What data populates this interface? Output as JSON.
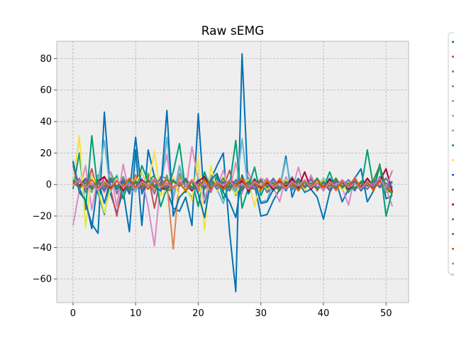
{
  "chart_data": {
    "type": "line",
    "title": "Raw sEMG",
    "xlabel": "",
    "ylabel": "",
    "xlim": [
      -2.6,
      53.6
    ],
    "ylim": [
      -75,
      91
    ],
    "xticks": [
      0,
      10,
      20,
      30,
      40,
      50
    ],
    "yticks": [
      -60,
      -40,
      -20,
      0,
      20,
      40,
      60,
      80
    ],
    "grid": true,
    "legend_position": "right-outside",
    "x": [
      0,
      1,
      2,
      3,
      4,
      5,
      6,
      7,
      8,
      9,
      10,
      11,
      12,
      13,
      14,
      15,
      16,
      17,
      18,
      19,
      20,
      21,
      22,
      23,
      24,
      25,
      26,
      27,
      28,
      29,
      30,
      31,
      32,
      33,
      34,
      35,
      36,
      37,
      38,
      39,
      40,
      41,
      42,
      43,
      44,
      45,
      46,
      47,
      48,
      49,
      50,
      51
    ],
    "series": [
      {
        "color": "#0072B2",
        "values": [
          14,
          -2,
          -12,
          -25,
          -31,
          46,
          -6,
          -18,
          -4,
          -30,
          22,
          -26,
          22,
          5,
          -2,
          -4,
          -15,
          -17,
          -8,
          -26,
          45,
          -12,
          3,
          12,
          20,
          -30,
          -68,
          83,
          -6,
          0,
          -20,
          -19,
          -10,
          -3,
          18,
          -8,
          2,
          -5,
          -3,
          -8,
          -22,
          -5,
          2,
          -11,
          -3,
          4,
          10,
          -11,
          -4,
          12,
          -9,
          -7
        ]
      },
      {
        "color": "#C44E52",
        "values": [
          3,
          0,
          -3,
          10,
          -6,
          5,
          -3,
          -20,
          3,
          -4,
          6,
          -2,
          6,
          -15,
          5,
          -4,
          -3,
          2,
          -1,
          3,
          -3,
          2,
          -5,
          4,
          -2,
          9,
          -6,
          3,
          -4,
          -2,
          4,
          -5,
          -2,
          -3,
          4,
          -1,
          3,
          -2,
          5,
          -4,
          2,
          -3,
          4,
          -2,
          -1,
          3,
          -3,
          2,
          -4,
          5,
          -3,
          -1
        ]
      },
      {
        "color": "#8172B2",
        "values": [
          -1,
          4,
          -5,
          6,
          -2,
          -3,
          8,
          -6,
          5,
          -3,
          2,
          -4,
          3,
          -6,
          5,
          4,
          -3,
          6,
          -1,
          -4,
          3,
          -2,
          5,
          -3,
          2,
          -4,
          3,
          -1,
          4,
          -3,
          2,
          -5,
          3,
          -2,
          4,
          -1,
          -3,
          2,
          -1,
          3,
          -2,
          4,
          -3,
          1,
          -2,
          3,
          -4,
          2,
          -1,
          3,
          -2,
          1
        ]
      },
      {
        "color": "#55A868",
        "values": [
          4,
          -3,
          2,
          -5,
          6,
          -4,
          8,
          -2,
          5,
          -6,
          3,
          -4,
          7,
          -1,
          -5,
          6,
          -9,
          7,
          -3,
          2,
          -5,
          4,
          -1,
          6,
          -4,
          3,
          -7,
          5,
          -2,
          4,
          -3,
          1,
          -4,
          3,
          -2,
          5,
          -3,
          2,
          -1,
          4,
          -2,
          3,
          -1,
          2,
          -4,
          3,
          -2,
          1,
          -3,
          2,
          -5,
          -4
        ]
      },
      {
        "color": "#DD8452",
        "values": [
          2,
          -2,
          3,
          -4,
          2,
          -5,
          4,
          -3,
          1,
          -2,
          5,
          -3,
          2,
          -4,
          3,
          1,
          -41,
          5,
          -2,
          3,
          -4,
          2,
          -3,
          4,
          -1,
          2,
          -3,
          5,
          -2,
          1,
          -4,
          3,
          -2,
          4,
          -1,
          2,
          -3,
          1,
          -2,
          3,
          -1,
          2,
          -4,
          1,
          -2,
          3,
          -1,
          2,
          -3,
          4,
          -2,
          -6
        ]
      },
      {
        "color": "#DA8BC3",
        "values": [
          -26,
          -4,
          12,
          -16,
          5,
          -3,
          8,
          -14,
          13,
          -6,
          -3,
          4,
          -14,
          -39,
          2,
          19,
          -10,
          11,
          -4,
          24,
          3,
          -10,
          6,
          -2,
          9,
          -4,
          14,
          -6,
          8,
          -3,
          4,
          2,
          -2,
          -11,
          5,
          -3,
          11,
          -4,
          6,
          -2,
          3,
          -1,
          4,
          -2,
          -13,
          5,
          -3,
          2,
          -1,
          4,
          -2,
          -14
        ]
      },
      {
        "color": "#64B5CD",
        "values": [
          5,
          -2,
          3,
          -4,
          1,
          28,
          -5,
          6,
          -7,
          3,
          -5,
          8,
          -3,
          4,
          -6,
          30,
          -8,
          12,
          -3,
          -8,
          4,
          -2,
          6,
          -3,
          -12,
          2,
          -5,
          29,
          -4,
          3,
          -11,
          -10,
          2,
          -3,
          16,
          -4,
          2,
          -1,
          3,
          -2,
          4,
          -1,
          -3,
          2,
          -1,
          4,
          -2,
          3,
          -1,
          2,
          -3,
          1
        ]
      },
      {
        "color": "#009E73",
        "values": [
          -3,
          20,
          -16,
          31,
          -5,
          -19,
          2,
          5,
          -9,
          3,
          -3,
          12,
          2,
          6,
          -14,
          -2,
          8,
          26,
          -5,
          3,
          -14,
          8,
          -3,
          5,
          -9,
          -1,
          28,
          -15,
          -2,
          11,
          -7,
          2,
          -4,
          3,
          -2,
          1,
          -3,
          2,
          -1,
          4,
          -2,
          8,
          -3,
          2,
          -5,
          1,
          -3,
          22,
          -2,
          13,
          -20,
          -4
        ]
      },
      {
        "color": "#F0E442",
        "values": [
          0,
          31,
          -27,
          6,
          -3,
          -18,
          -2,
          4,
          -3,
          -2,
          1,
          8,
          -1,
          21,
          -7,
          -3,
          5,
          -9,
          -2,
          -10,
          17,
          -29,
          12,
          -4,
          5,
          -2,
          -6,
          1,
          3,
          -14,
          2,
          -3,
          1,
          -2,
          3,
          -1,
          2,
          -3,
          1,
          -2,
          3,
          -1,
          2,
          -4,
          1,
          -2,
          2,
          -1,
          3,
          -2,
          1,
          -3
        ]
      },
      {
        "color": "#0072B2",
        "values": [
          15,
          -5,
          -10,
          -28,
          3,
          -12,
          4,
          -3,
          2,
          -6,
          30,
          -6,
          3,
          -1,
          -4,
          47,
          -20,
          -8,
          -4,
          3,
          -6,
          -21,
          3,
          7,
          -5,
          -11,
          -21,
          6,
          -5,
          3,
          -12,
          -11,
          -3,
          2,
          -4,
          3,
          -1,
          2,
          -3,
          1,
          -2,
          4,
          -2,
          3,
          -1,
          2,
          -4,
          1,
          -2,
          3,
          -1,
          2
        ]
      },
      {
        "color": "#4C72B0",
        "values": [
          1,
          -2,
          3,
          -1,
          2,
          -3,
          4,
          -2,
          1,
          -4,
          2,
          -1,
          3,
          -2,
          1,
          -3,
          2,
          -1,
          4,
          -2,
          3,
          -1,
          2,
          -3,
          1,
          -2,
          3,
          -4,
          2,
          -1,
          3,
          -2,
          1,
          -3,
          2,
          -1,
          4,
          -2,
          1,
          -3,
          2,
          -1,
          3,
          -2,
          1,
          -4,
          2,
          -1,
          3,
          -2,
          1,
          -3
        ]
      },
      {
        "color": "#A50026",
        "values": [
          2,
          -1,
          4,
          -3,
          2,
          5,
          -2,
          3,
          -4,
          1,
          -2,
          3,
          -1,
          4,
          -2,
          -3,
          2,
          -1,
          3,
          -4,
          2,
          5,
          -3,
          1,
          -2,
          3,
          -1,
          2,
          -4,
          3,
          -2,
          1,
          -3,
          2,
          -1,
          4,
          -2,
          8,
          -3,
          1,
          -2,
          3,
          -1,
          2,
          -3,
          1,
          -2,
          4,
          -1,
          2,
          10,
          -5
        ]
      },
      {
        "color": "#6F63A8",
        "values": [
          12,
          -3,
          4,
          -2,
          1,
          -4,
          2,
          -1,
          3,
          -2,
          1,
          -3,
          2,
          -1,
          4,
          -2,
          3,
          -1,
          2,
          -3,
          1,
          -2,
          3,
          -1,
          2,
          -4,
          3,
          -2,
          1,
          -3,
          2,
          -1,
          4,
          -2,
          1,
          -3,
          2,
          -1,
          3,
          -2,
          1,
          -4,
          2,
          -1,
          3,
          -2,
          1,
          -3,
          2,
          -1,
          4,
          -2
        ]
      },
      {
        "color": "#3B8E3B",
        "values": [
          3,
          -2,
          1,
          -3,
          2,
          -1,
          4,
          -2,
          1,
          -3,
          2,
          -1,
          3,
          -2,
          1,
          -4,
          2,
          -1,
          3,
          -2,
          1,
          -3,
          2,
          -1,
          4,
          -2,
          1,
          -3,
          2,
          -1,
          3,
          -2,
          1,
          -4,
          2,
          -1,
          3,
          -2,
          1,
          -3,
          2,
          -1,
          4,
          -2,
          1,
          -3,
          2,
          -1,
          3,
          12,
          -2,
          -6
        ]
      },
      {
        "color": "#D55E00",
        "values": [
          1,
          2,
          -1,
          3,
          -2,
          1,
          -3,
          2,
          -1,
          4,
          -2,
          1,
          -3,
          2,
          -1,
          3,
          -2,
          1,
          -4,
          2,
          -1,
          3,
          -2,
          1,
          -3,
          2,
          -1,
          4,
          -2,
          1,
          -3,
          2,
          -1,
          3,
          -2,
          1,
          -4,
          2,
          -1,
          3,
          -2,
          1,
          -3,
          2,
          -1,
          4,
          -2,
          1,
          -3,
          2,
          -1,
          -5
        ]
      },
      {
        "color": "#CC79A7",
        "values": [
          -1,
          3,
          -2,
          1,
          -4,
          2,
          -1,
          3,
          -2,
          1,
          -3,
          2,
          -1,
          4,
          -2,
          1,
          -3,
          2,
          -1,
          3,
          -2,
          1,
          -4,
          2,
          -1,
          3,
          -2,
          1,
          -3,
          2,
          -1,
          4,
          -2,
          1,
          -3,
          2,
          -1,
          3,
          -2,
          1,
          -4,
          2,
          -1,
          3,
          -2,
          1,
          -3,
          2,
          -1,
          4,
          -2,
          9
        ]
      }
    ]
  }
}
